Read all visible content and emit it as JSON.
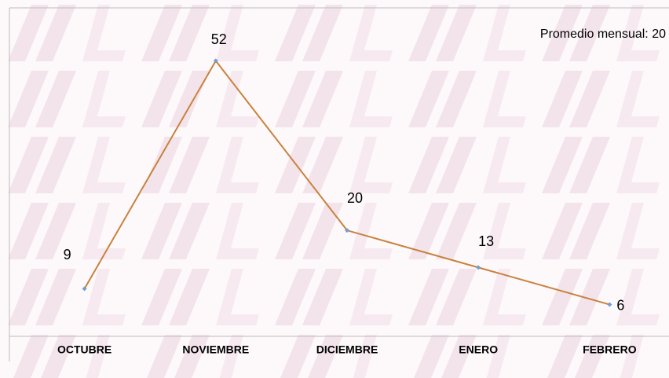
{
  "chart_data": {
    "type": "line",
    "annotation": "Promedio mensual: 20",
    "categories": [
      "OCTUBRE",
      "NOVIEMBRE",
      "DICIEMBRE",
      "ENERO",
      "FEBRERO"
    ],
    "series": [
      {
        "name": null,
        "color": "#c8823e",
        "marker_color": "#6f9fd0",
        "values": [
          9,
          52,
          20,
          13,
          6
        ]
      }
    ],
    "ylim": [
      0,
      62
    ]
  }
}
